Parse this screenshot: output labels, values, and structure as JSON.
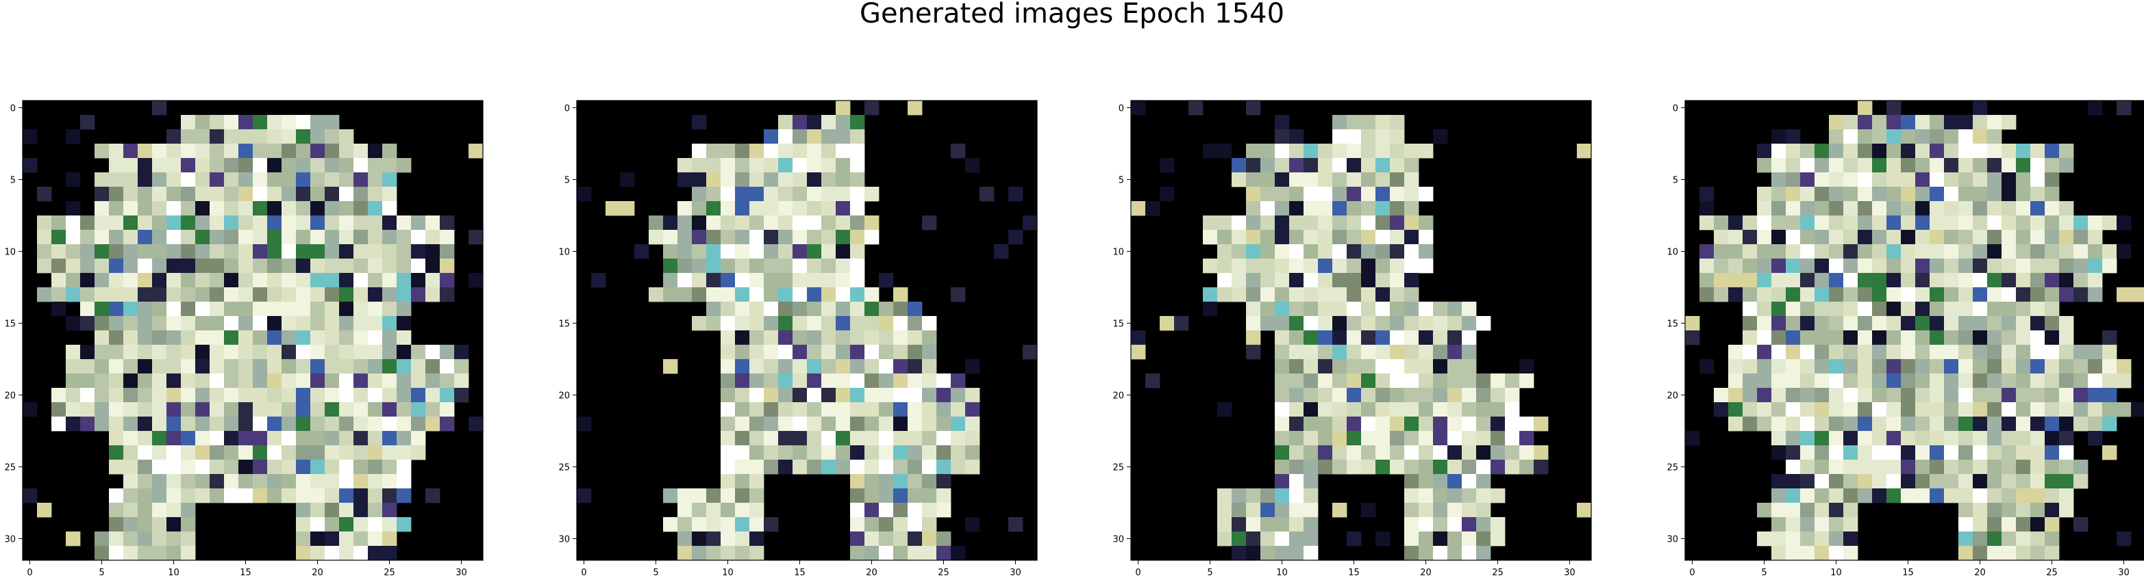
{
  "figure": {
    "title": "Generated images Epoch 1540"
  },
  "chart_data": [
    {
      "type": "heatmap",
      "title": "",
      "xlabel": "",
      "ylabel": "",
      "grid_size": 32,
      "xlim": [
        -0.5,
        31.5
      ],
      "ylim": [
        31.5,
        -0.5
      ],
      "xticks": [
        "0",
        "5",
        "10",
        "15",
        "20",
        "25",
        "30"
      ],
      "yticks": [
        "0",
        "5",
        "10",
        "15",
        "20",
        "25",
        "30"
      ],
      "grid": false,
      "legend": "none"
    },
    {
      "type": "heatmap",
      "title": "",
      "xlabel": "",
      "ylabel": "",
      "grid_size": 32,
      "xlim": [
        -0.5,
        31.5
      ],
      "ylim": [
        31.5,
        -0.5
      ],
      "xticks": [
        "0",
        "5",
        "10",
        "15",
        "20",
        "25",
        "30"
      ],
      "yticks": [
        "0",
        "5",
        "10",
        "15",
        "20",
        "25",
        "30"
      ],
      "grid": false,
      "legend": "none"
    },
    {
      "type": "heatmap",
      "title": "",
      "xlabel": "",
      "ylabel": "",
      "grid_size": 32,
      "xlim": [
        -0.5,
        31.5
      ],
      "ylim": [
        31.5,
        -0.5
      ],
      "xticks": [
        "0",
        "5",
        "10",
        "15",
        "20",
        "25",
        "30"
      ],
      "yticks": [
        "0",
        "5",
        "10",
        "15",
        "20",
        "25",
        "30"
      ],
      "grid": false,
      "legend": "none"
    },
    {
      "type": "heatmap",
      "title": "",
      "xlabel": "",
      "ylabel": "",
      "grid_size": 32,
      "xlim": [
        -0.5,
        31.5
      ],
      "ylim": [
        31.5,
        -0.5
      ],
      "xticks": [
        "0",
        "5",
        "10",
        "15",
        "20",
        "25",
        "30"
      ],
      "yticks": [
        "0",
        "5",
        "10",
        "15",
        "20",
        "25",
        "30"
      ],
      "grid": false,
      "legend": "none"
    }
  ],
  "colors": {
    "background": "#000000",
    "palette": [
      "#e4ead0",
      "#f1f4de",
      "#cfd8b8",
      "#dde3c2",
      "#b9c6a9",
      "#ffffff",
      "#a8b89a",
      "#9db0a4",
      "#8fa08c",
      "#7c8a70",
      "#6fc3c6",
      "#3b5fa8",
      "#4b3a7a",
      "#2f7a3c",
      "#1a1a3a",
      "#101028",
      "#2a2a44",
      "#d8d49c"
    ]
  }
}
